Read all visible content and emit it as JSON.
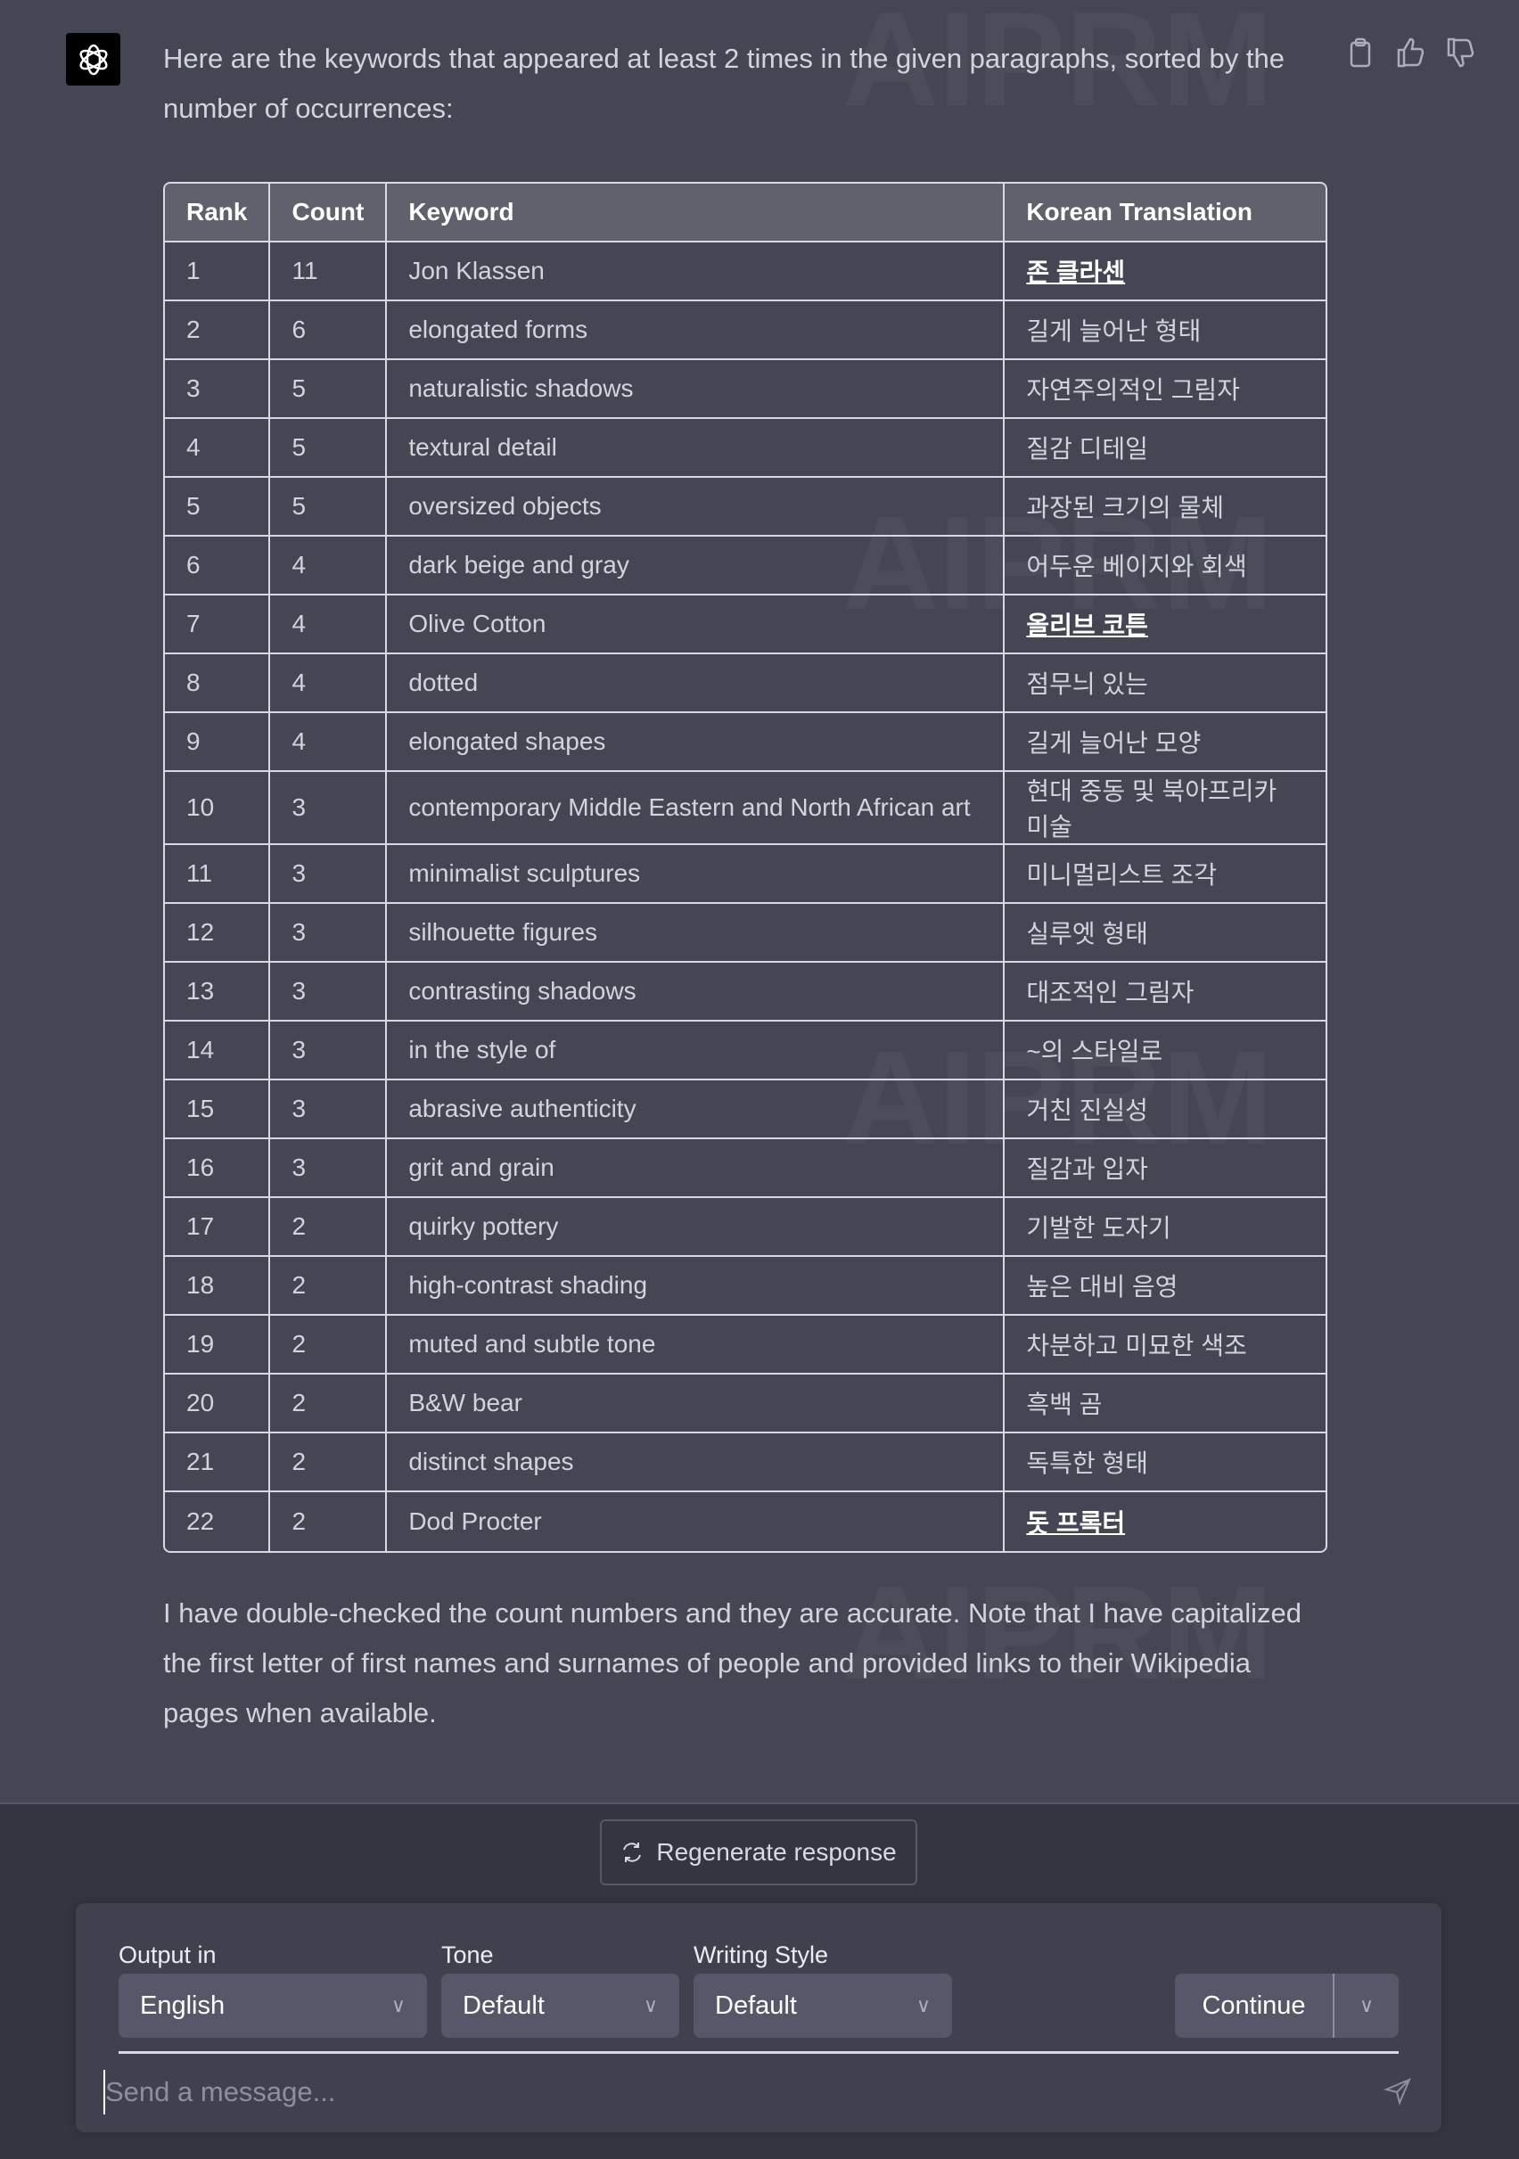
{
  "message": {
    "intro": "Here are the keywords that appeared at least 2 times in the given paragraphs, sorted by the number of occurrences:",
    "outro": "I have double-checked the count numbers and they are accurate. Note that I have capitalized the first letter of first names and surnames of people and provided links to their Wikipedia pages when available."
  },
  "watermark": "AIPRM",
  "table": {
    "headers": [
      "Rank",
      "Count",
      "Keyword",
      "Korean Translation"
    ],
    "rows": [
      [
        "1",
        "11",
        "Jon Klassen",
        "존 클라센",
        true
      ],
      [
        "2",
        "6",
        "elongated forms",
        "길게 늘어난 형태",
        false
      ],
      [
        "3",
        "5",
        "naturalistic shadows",
        "자연주의적인 그림자",
        false
      ],
      [
        "4",
        "5",
        "textural detail",
        "질감 디테일",
        false
      ],
      [
        "5",
        "5",
        "oversized objects",
        "과장된 크기의 물체",
        false
      ],
      [
        "6",
        "4",
        "dark beige and gray",
        "어두운 베이지와 회색",
        false
      ],
      [
        "7",
        "4",
        "Olive Cotton",
        "올리브 코튼",
        true
      ],
      [
        "8",
        "4",
        "dotted",
        "점무늬 있는",
        false
      ],
      [
        "9",
        "4",
        "elongated shapes",
        "길게 늘어난 모양",
        false
      ],
      [
        "10",
        "3",
        "contemporary Middle Eastern and North African art",
        "현대 중동 및 북아프리카 미술",
        false
      ],
      [
        "11",
        "3",
        "minimalist sculptures",
        "미니멀리스트 조각",
        false
      ],
      [
        "12",
        "3",
        "silhouette figures",
        "실루엣 형태",
        false
      ],
      [
        "13",
        "3",
        "contrasting shadows",
        "대조적인 그림자",
        false
      ],
      [
        "14",
        "3",
        "in the style of",
        "~의 스타일로",
        false
      ],
      [
        "15",
        "3",
        "abrasive authenticity",
        "거친 진실성",
        false
      ],
      [
        "16",
        "3",
        "grit and grain",
        "질감과 입자",
        false
      ],
      [
        "17",
        "2",
        "quirky pottery",
        "기발한 도자기",
        false
      ],
      [
        "18",
        "2",
        "high-contrast shading",
        "높은 대비 음영",
        false
      ],
      [
        "19",
        "2",
        "muted and subtle tone",
        "차분하고 미묘한 색조",
        false
      ],
      [
        "20",
        "2",
        "B&W bear",
        "흑백 곰",
        false
      ],
      [
        "21",
        "2",
        "distinct shapes",
        "독특한 형태",
        false
      ],
      [
        "22",
        "2",
        "Dod Procter",
        "돗 프록터",
        true
      ]
    ]
  },
  "footer": {
    "regenerate": "Regenerate response",
    "output_label": "Output in",
    "output_value": "English",
    "tone_label": "Tone",
    "tone_value": "Default",
    "style_label": "Writing Style",
    "style_value": "Default",
    "continue": "Continue",
    "placeholder": "Send a message..."
  }
}
